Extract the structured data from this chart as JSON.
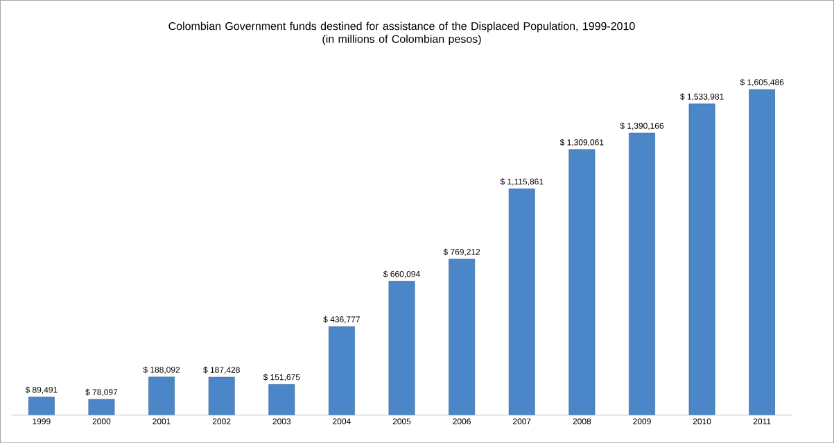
{
  "chart_data": {
    "type": "bar",
    "title": "Colombian Government funds destined for assistance of the Displaced Population, 1999-2010",
    "subtitle": "(in millions of Colombian pesos)",
    "categories": [
      "1999",
      "2000",
      "2001",
      "2002",
      "2003",
      "2004",
      "2005",
      "2006",
      "2007",
      "2008",
      "2009",
      "2010",
      "2011"
    ],
    "values": [
      89491,
      78097,
      188092,
      187428,
      151675,
      436777,
      660094,
      769212,
      1115861,
      1309061,
      1390166,
      1533981,
      1605486
    ],
    "value_labels": [
      "$ 89,491",
      "$ 78,097",
      "$ 188,092",
      "$ 187,428",
      "$ 151,675",
      "$ 436,777",
      "$ 660,094",
      "$ 769,212",
      "$ 1,115,861",
      "$ 1,309,061",
      "$ 1,390,166",
      "$ 1,533,981",
      "$ 1,605,486"
    ],
    "color": "#4a86c8"
  }
}
